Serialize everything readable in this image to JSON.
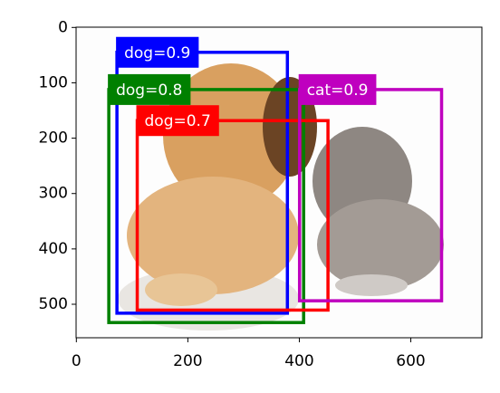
{
  "chart_data": {
    "type": "image-boxes",
    "xlim": [
      -0.5,
      727.5
    ],
    "ylim": [
      560.5,
      -0.5
    ],
    "xticks": [
      0,
      200,
      400,
      600
    ],
    "yticks": [
      0,
      100,
      200,
      300,
      400,
      500
    ],
    "boxes": [
      {
        "label": "dog=0.9",
        "color": "#0000ff",
        "x1": 72.8,
        "y1": 44.9,
        "x2": 378.6,
        "y2": 516.1
      },
      {
        "label": "dog=0.8",
        "color": "#008000",
        "x1": 58.2,
        "y1": 112.2,
        "x2": 407.7,
        "y2": 533.0
      },
      {
        "label": "dog=0.7",
        "color": "#ff0000",
        "x1": 109.2,
        "y1": 168.3,
        "x2": 451.4,
        "y2": 510.5
      },
      {
        "label": "cat=0.9",
        "color": "#bf00bf",
        "x1": 400.4,
        "y1": 112.2,
        "x2": 655.2,
        "y2": 493.7
      }
    ]
  }
}
